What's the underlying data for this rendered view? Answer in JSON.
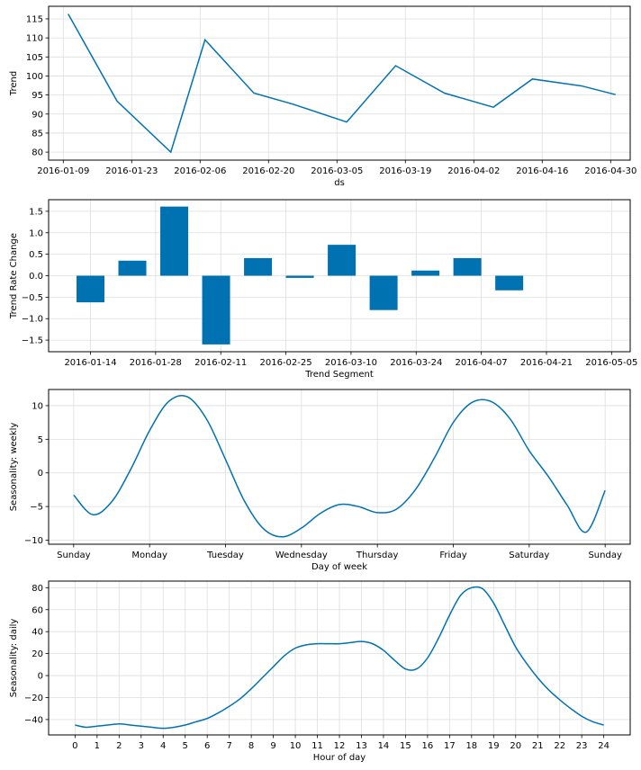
{
  "colors": {
    "line": "#0072B2",
    "bar": "#0072B2",
    "grid": "#dddddd",
    "axis": "#000000"
  },
  "chart_data": [
    {
      "type": "line",
      "ylabel": "Trend",
      "xlabel": "ds",
      "x_dates": [
        "2016-01-10",
        "2016-01-20",
        "2016-01-31",
        "2016-02-07",
        "2016-02-17",
        "2016-02-25",
        "2016-03-07",
        "2016-03-17",
        "2016-03-27",
        "2016-04-06",
        "2016-04-14",
        "2016-04-24",
        "2016-05-01"
      ],
      "y": [
        116.3,
        93.4,
        80.0,
        109.5,
        95.5,
        92.6,
        87.9,
        102.7,
        95.5,
        91.8,
        99.2,
        97.4,
        95.1
      ],
      "xlim": [
        "2016-01-06",
        "2016-05-04"
      ],
      "ylim": [
        77.9,
        118.3
      ],
      "xticks": [
        "2016-01-09",
        "2016-01-23",
        "2016-02-06",
        "2016-02-20",
        "2016-03-05",
        "2016-03-19",
        "2016-04-02",
        "2016-04-16",
        "2016-04-30"
      ],
      "yticks": [
        80,
        85,
        90,
        95,
        100,
        105,
        110,
        115
      ]
    },
    {
      "type": "bar",
      "ylabel": "Trend Rate Change",
      "xlabel": "Trend Segment",
      "x_dates": [
        "2016-01-14",
        "2016-01-23",
        "2016-02-01",
        "2016-02-10",
        "2016-02-19",
        "2016-02-28",
        "2016-03-08",
        "2016-03-17",
        "2016-03-26",
        "2016-04-04",
        "2016-04-13"
      ],
      "values": [
        -0.62,
        0.35,
        1.61,
        -1.6,
        0.41,
        -0.05,
        0.72,
        -0.8,
        0.12,
        0.41,
        -0.34
      ],
      "xlim": [
        "2016-01-05",
        "2016-05-09"
      ],
      "ylim": [
        -1.77,
        1.77
      ],
      "xticks": [
        "2016-01-14",
        "2016-01-28",
        "2016-02-11",
        "2016-02-25",
        "2016-03-10",
        "2016-03-24",
        "2016-04-07",
        "2016-04-21",
        "2016-05-05"
      ],
      "yticks": [
        -1.5,
        -1.0,
        -0.5,
        0.0,
        0.5,
        1.0,
        1.5
      ]
    },
    {
      "type": "line",
      "ylabel": "Seasonality: weekly",
      "xlabel": "Day of week",
      "x": [
        0,
        0.25,
        0.5,
        0.75,
        1.0,
        1.25,
        1.5,
        1.75,
        2.0,
        2.25,
        2.5,
        2.75,
        3.0,
        3.25,
        3.5,
        3.75,
        4.0,
        4.25,
        4.5,
        4.75,
        5.0,
        5.25,
        5.5,
        5.75,
        6.0,
        6.25,
        6.5,
        6.75,
        7.0
      ],
      "y": [
        -3.3,
        -6.2,
        -4.3,
        0.5,
        6.3,
        10.6,
        11.3,
        8.0,
        2.0,
        -4.2,
        -8.3,
        -9.5,
        -8.2,
        -6.0,
        -4.7,
        -5.0,
        -5.9,
        -5.4,
        -2.5,
        2.2,
        7.5,
        10.5,
        10.6,
        8.0,
        3.3,
        -0.5,
        -4.8,
        -8.8,
        -2.6
      ],
      "xlim": [
        -0.33,
        7.33
      ],
      "ylim": [
        -10.6,
        12.4
      ],
      "xticks": [
        "Sunday",
        "Monday",
        "Tuesday",
        "Wednesday",
        "Thursday",
        "Friday",
        "Saturday",
        "Sunday"
      ],
      "yticks": [
        -10,
        -5,
        0,
        5,
        10
      ]
    },
    {
      "type": "line",
      "ylabel": "Seasonality: daily",
      "xlabel": "Hour of day",
      "x": [
        0,
        0.5,
        1,
        1.5,
        2,
        2.5,
        3,
        3.5,
        4,
        4.5,
        5,
        5.5,
        6,
        6.5,
        7,
        7.5,
        8,
        8.5,
        9,
        9.5,
        10,
        10.5,
        11,
        11.5,
        12,
        12.5,
        13,
        13.5,
        14,
        14.5,
        15,
        15.5,
        16,
        16.5,
        17,
        17.5,
        18,
        18.5,
        19,
        19.5,
        20,
        20.5,
        21,
        21.5,
        22,
        22.5,
        23,
        23.5,
        24
      ],
      "y": [
        -45,
        -47,
        -46,
        -45,
        -44,
        -45,
        -46,
        -47,
        -48,
        -47,
        -45,
        -42,
        -39,
        -34,
        -28,
        -21,
        -12,
        -2,
        8,
        18,
        25,
        28,
        29,
        29,
        29,
        30,
        31,
        29,
        23,
        14,
        6,
        6,
        16,
        34,
        55,
        73,
        80,
        79,
        66,
        46,
        26,
        11,
        -2,
        -13,
        -22,
        -30,
        -37,
        -42,
        -45
      ],
      "xlim": [
        -1.2,
        25.2
      ],
      "ylim": [
        -54,
        86
      ],
      "xticks": [
        "0",
        "1",
        "2",
        "3",
        "4",
        "5",
        "6",
        "7",
        "8",
        "9",
        "10",
        "11",
        "12",
        "13",
        "14",
        "15",
        "16",
        "17",
        "18",
        "19",
        "20",
        "21",
        "22",
        "23",
        "24"
      ],
      "yticks": [
        -40,
        -20,
        0,
        20,
        40,
        60,
        80
      ]
    }
  ]
}
